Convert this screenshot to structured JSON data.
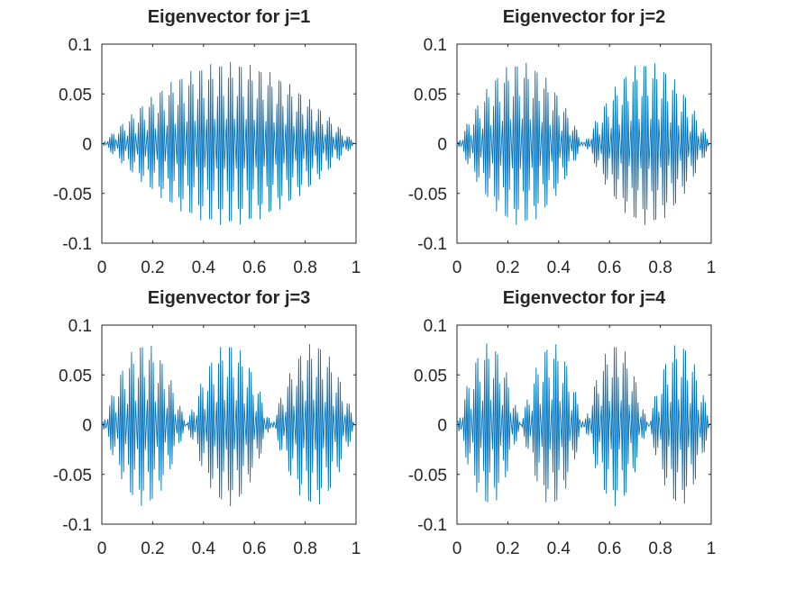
{
  "figure": {
    "background": "#ffffff",
    "line_color": "#0072BD",
    "axis_color": "#262626"
  },
  "chart_data": [
    {
      "type": "line",
      "title": "Eigenvector for j=1",
      "xlabel": "",
      "ylabel": "",
      "j": 1,
      "amplitude": 0.082,
      "xlim": [
        0,
        1
      ],
      "ylim": [
        -0.1,
        0.1
      ],
      "xticks": [
        0,
        0.2,
        0.4,
        0.6,
        0.8,
        1
      ],
      "xticklabels": [
        "0",
        "0.2",
        "0.4",
        "0.6",
        "0.8",
        "1"
      ],
      "yticks": [
        -0.1,
        -0.05,
        0,
        0.05,
        0.1
      ],
      "yticklabels": [
        "-0.1",
        "-0.05",
        "0",
        "0.05",
        "0.1"
      ],
      "grid": false,
      "series": [
        {
          "color": "#0072BD"
        }
      ]
    },
    {
      "type": "line",
      "title": "Eigenvector for j=2",
      "xlabel": "",
      "ylabel": "",
      "j": 2,
      "amplitude": 0.082,
      "xlim": [
        0,
        1
      ],
      "ylim": [
        -0.1,
        0.1
      ],
      "xticks": [
        0,
        0.2,
        0.4,
        0.6,
        0.8,
        1
      ],
      "xticklabels": [
        "0",
        "0.2",
        "0.4",
        "0.6",
        "0.8",
        "1"
      ],
      "yticks": [
        -0.1,
        -0.05,
        0,
        0.05,
        0.1
      ],
      "yticklabels": [
        "-0.1",
        "-0.05",
        "0",
        "0.05",
        "0.1"
      ],
      "grid": false,
      "series": [
        {
          "color": "#0072BD"
        }
      ]
    },
    {
      "type": "line",
      "title": "Eigenvector for j=3",
      "xlabel": "",
      "ylabel": "",
      "j": 3,
      "amplitude": 0.082,
      "xlim": [
        0,
        1
      ],
      "ylim": [
        -0.1,
        0.1
      ],
      "xticks": [
        0,
        0.2,
        0.4,
        0.6,
        0.8,
        1
      ],
      "xticklabels": [
        "0",
        "0.2",
        "0.4",
        "0.6",
        "0.8",
        "1"
      ],
      "yticks": [
        -0.1,
        -0.05,
        0,
        0.05,
        0.1
      ],
      "yticklabels": [
        "-0.1",
        "-0.05",
        "0",
        "0.05",
        "0.1"
      ],
      "grid": false,
      "series": [
        {
          "color": "#0072BD"
        }
      ]
    },
    {
      "type": "line",
      "title": "Eigenvector for j=4",
      "xlabel": "",
      "ylabel": "",
      "j": 4,
      "amplitude": 0.082,
      "xlim": [
        0,
        1
      ],
      "ylim": [
        -0.1,
        0.1
      ],
      "xticks": [
        0,
        0.2,
        0.4,
        0.6,
        0.8,
        1
      ],
      "xticklabels": [
        "0",
        "0.2",
        "0.4",
        "0.6",
        "0.8",
        "1"
      ],
      "yticks": [
        -0.1,
        -0.05,
        0,
        0.05,
        0.1
      ],
      "yticklabels": [
        "-0.1",
        "-0.05",
        "0",
        "0.05",
        "0.1"
      ],
      "grid": false,
      "series": [
        {
          "color": "#0072BD"
        }
      ]
    }
  ]
}
